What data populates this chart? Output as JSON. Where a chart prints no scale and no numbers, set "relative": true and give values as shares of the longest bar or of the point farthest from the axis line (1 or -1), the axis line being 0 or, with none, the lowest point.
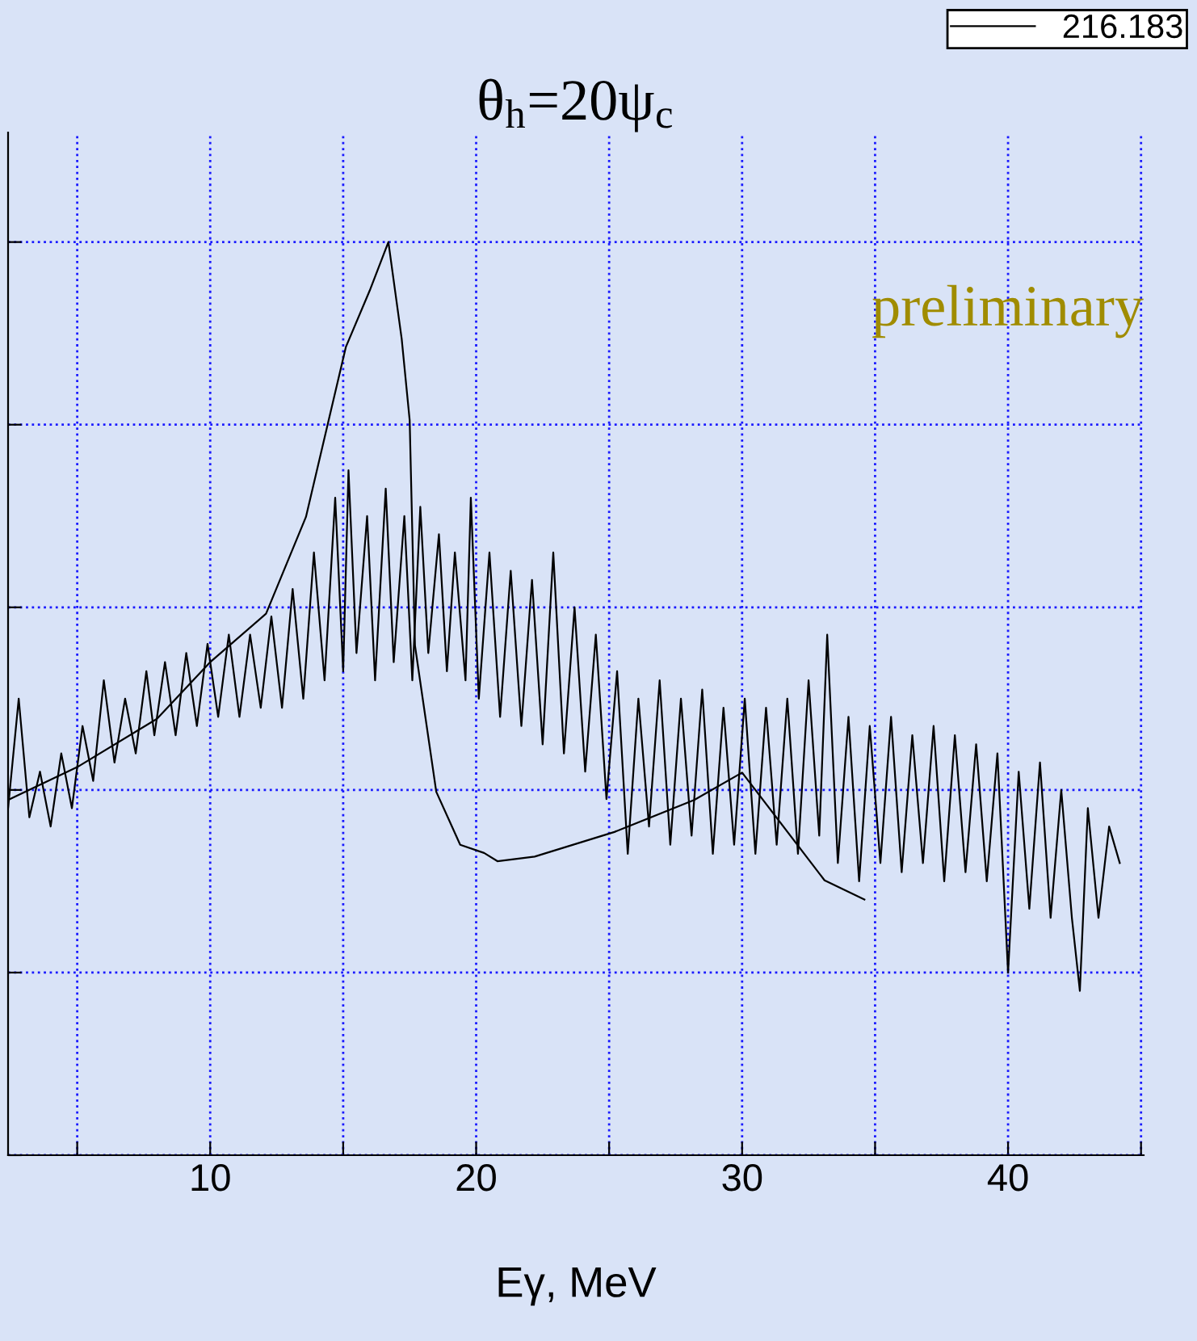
{
  "chart_data": {
    "type": "line",
    "title": "θ$_{h}$=20ψ$_{c}$",
    "xlabel": "Eγ, MeV",
    "relative": true,
    "xlim": [
      2.4,
      45.1
    ],
    "xticks": [
      {
        "value": 5,
        "label": null
      },
      10,
      {
        "value": 15,
        "label": null
      },
      20,
      {
        "value": 25,
        "label": null
      },
      30,
      {
        "value": 35,
        "label": null
      },
      40,
      {
        "value": 45,
        "label": null
      }
    ],
    "grid": true,
    "legend": "top right",
    "tick_labels": "x",
    "annotations": [
      "preliminary"
    ],
    "series": [
      {
        "name": "216.183",
        "color": "#000000",
        "x": [
          2.4,
          2.8,
          3.2,
          3.6,
          4.0,
          4.4,
          4.8,
          5.2,
          5.6,
          6.0,
          6.4,
          6.8,
          7.2,
          7.6,
          7.9,
          8.3,
          8.7,
          9.1,
          9.5,
          9.9,
          10.3,
          10.7,
          11.1,
          11.5,
          11.9,
          12.3,
          12.7,
          13.1,
          13.5,
          13.9,
          14.3,
          14.7,
          15.0,
          15.2,
          15.5,
          15.9,
          16.2,
          16.6,
          16.9,
          17.3,
          17.6,
          17.9,
          18.2,
          18.6,
          18.9,
          19.2,
          19.6,
          19.8,
          20.1,
          20.5,
          20.9,
          21.3,
          21.7,
          22.1,
          22.5,
          22.9,
          23.3,
          23.7,
          24.1,
          24.5,
          24.9,
          25.3,
          25.7,
          26.1,
          26.5,
          26.9,
          27.3,
          27.7,
          28.1,
          28.5,
          28.9,
          29.3,
          29.7,
          30.1,
          30.5,
          30.9,
          31.3,
          31.7,
          32.1,
          32.5,
          32.9,
          33.2,
          33.6,
          34.0,
          34.4,
          34.8,
          35.2,
          35.6,
          36.0,
          36.4,
          36.8,
          37.2,
          37.6,
          38.0,
          38.4,
          38.8,
          39.2,
          39.6,
          40.0,
          40.4,
          40.8,
          41.2,
          41.6,
          42.0,
          42.4,
          42.7,
          43.0,
          43.4,
          43.8,
          44.2
        ],
        "values": [
          0.38,
          0.5,
          0.37,
          0.42,
          0.36,
          0.44,
          0.38,
          0.47,
          0.41,
          0.52,
          0.43,
          0.5,
          0.44,
          0.53,
          0.46,
          0.54,
          0.46,
          0.55,
          0.47,
          0.56,
          0.48,
          0.57,
          0.48,
          0.57,
          0.49,
          0.59,
          0.49,
          0.62,
          0.5,
          0.66,
          0.52,
          0.72,
          0.53,
          0.75,
          0.55,
          0.7,
          0.52,
          0.73,
          0.54,
          0.7,
          0.52,
          0.71,
          0.55,
          0.68,
          0.53,
          0.66,
          0.52,
          0.72,
          0.5,
          0.66,
          0.48,
          0.64,
          0.47,
          0.63,
          0.45,
          0.66,
          0.44,
          0.6,
          0.42,
          0.57,
          0.39,
          0.53,
          0.33,
          0.5,
          0.36,
          0.52,
          0.34,
          0.5,
          0.35,
          0.51,
          0.33,
          0.49,
          0.34,
          0.5,
          0.33,
          0.49,
          0.34,
          0.5,
          0.33,
          0.52,
          0.35,
          0.57,
          0.32,
          0.48,
          0.3,
          0.47,
          0.32,
          0.48,
          0.31,
          0.46,
          0.32,
          0.47,
          0.3,
          0.46,
          0.31,
          0.45,
          0.3,
          0.44,
          0.2,
          0.42,
          0.27,
          0.43,
          0.26,
          0.4,
          0.26,
          0.18,
          0.38,
          0.26,
          0.36,
          0.32
        ]
      },
      {
        "color": "#000000",
        "x": [
          2.4,
          5,
          8,
          10,
          12.1,
          13.6,
          15.1,
          16,
          16.7,
          17.2,
          17.5,
          17.7,
          18.5,
          19.4,
          20.3,
          20.8,
          22.2,
          25.2,
          28.2,
          30,
          33.1,
          34.6
        ],
        "values": [
          0.389,
          0.425,
          0.478,
          0.54,
          0.593,
          0.699,
          0.885,
          0.947,
          1.0,
          0.894,
          0.805,
          0.558,
          0.398,
          0.34,
          0.331,
          0.322,
          0.327,
          0.354,
          0.389,
          0.419,
          0.301,
          0.28
        ]
      }
    ]
  }
}
